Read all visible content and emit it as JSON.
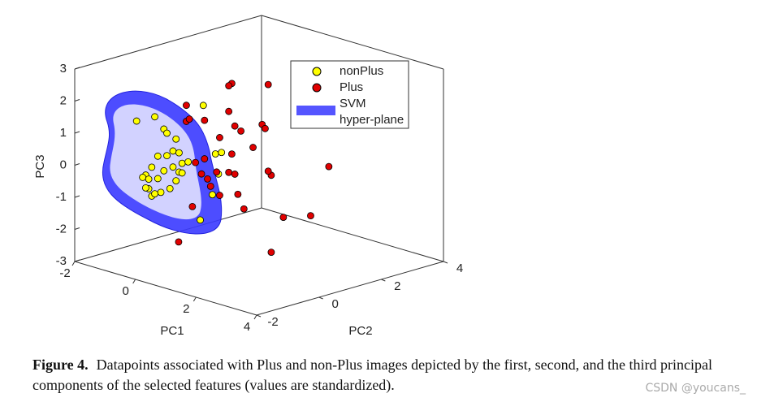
{
  "chart_data": {
    "type": "scatter3d",
    "xlabel": "PC1",
    "ylabel": "PC2",
    "zlabel": "PC3",
    "xlim": [
      -2,
      4
    ],
    "ylim": [
      -2,
      4
    ],
    "zlim": [
      -3,
      3
    ],
    "xticks": [
      -2,
      0,
      2,
      4
    ],
    "yticks": [
      -2,
      0,
      2,
      4
    ],
    "zticks": [
      -3,
      -2,
      -1,
      0,
      1,
      2,
      3
    ],
    "series": [
      {
        "name": "nonPlus",
        "color": "#ffff00",
        "x": [
          -1.5,
          -0.9,
          -0.6,
          -0.5,
          -0.2,
          -0.3,
          -0.1,
          -0.5,
          -0.8,
          -1.0,
          -1.2,
          -1.3,
          -1.1,
          -0.8,
          -0.6,
          -0.3,
          -0.1,
          -0.2,
          -0.4,
          -0.7,
          -1.1,
          -1.2,
          -1.0,
          -0.9,
          0.0,
          0.0,
          0.2,
          0.7,
          1.1,
          1.3,
          1.2,
          1.0,
          0.6
        ],
        "y": [
          -0.5,
          -0.5,
          -0.5,
          -0.5,
          -0.5,
          -0.5,
          -0.5,
          -0.5,
          -0.5,
          -0.5,
          -0.5,
          -0.5,
          -0.5,
          -0.5,
          -0.5,
          -0.5,
          -0.5,
          -0.5,
          -0.5,
          -0.5,
          -0.5,
          -0.5,
          -0.5,
          -0.5,
          -0.5,
          -0.5,
          -0.5,
          -0.5,
          -0.5,
          -0.5,
          -0.5,
          -0.5,
          -0.5
        ],
        "z": [
          1.1,
          1.4,
          1.1,
          1.0,
          0.9,
          0.5,
          0.5,
          0.3,
          0.2,
          -0.2,
          -0.5,
          -0.6,
          -0.6,
          -0.5,
          -0.2,
          0.0,
          -0.1,
          -0.4,
          -0.7,
          -0.9,
          -0.9,
          -0.9,
          -1.1,
          -1.0,
          -0.1,
          0.2,
          0.3,
          2.2,
          0.8,
          0.9,
          0.2,
          -0.5,
          -1.4
        ]
      },
      {
        "name": "Plus",
        "color": "#e00000",
        "x": [
          0.1,
          0.0,
          1.3,
          -1.4,
          -1.4,
          -1.3,
          -0.8,
          0.0,
          0.2,
          0.4,
          1.1,
          1.2,
          -0.3,
          0.1,
          0.8,
          -1.1,
          -0.9,
          -0.7,
          -0.4,
          0.0,
          0.2,
          1.4,
          1.3,
          -0.6,
          0.3,
          -0.3,
          3.3,
          2.7,
          1.8,
          0.5,
          -1.2,
          0.4,
          1.4,
          -0.8
        ],
        "y": [
          1,
          1,
          1,
          1,
          1,
          1,
          1,
          1,
          1,
          1,
          1,
          1,
          1,
          1,
          1,
          1,
          1,
          1,
          1,
          1,
          1,
          1,
          1,
          1,
          1,
          1,
          1,
          1,
          1,
          1,
          1,
          -1,
          1,
          1
        ],
        "z": [
          2.3,
          2.2,
          2.6,
          1.2,
          0.7,
          0.8,
          0.9,
          1.4,
          1.0,
          0.9,
          1.3,
          1.2,
          0.5,
          0.1,
          0.5,
          -0.5,
          -0.8,
          -0.9,
          -0.6,
          -0.5,
          -0.5,
          -0.2,
          -0.1,
          -1.1,
          -1.1,
          -1.3,
          0.6,
          -1.1,
          -1.4,
          -1.5,
          -1.9,
          -2.0,
          -2.6,
          -0.3
        ]
      }
    ],
    "surface": {
      "label_lines": [
        "SVM",
        "hyper-plane"
      ],
      "color": "#5555ff"
    }
  },
  "caption": {
    "label": "Figure 4.",
    "text": "Datapoints associated with Plus and non-Plus images depicted by the first, second, and the third principal components of the selected features (values are standardized)."
  },
  "watermark": "CSDN @youcans_"
}
